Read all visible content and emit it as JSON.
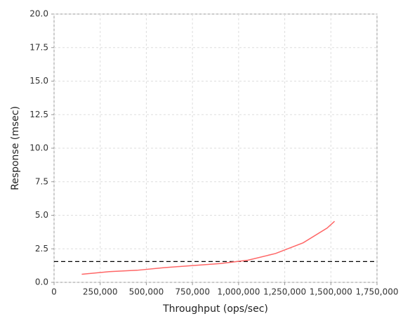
{
  "chart_data": {
    "type": "line",
    "x_label": "Throughput (ops/sec)",
    "y_label": "Response (msec)",
    "x": [
      150000,
      300000,
      450000,
      600000,
      750000,
      900000,
      1050000,
      1200000,
      1350000,
      1480000,
      1520000
    ],
    "values": [
      0.6,
      0.8,
      0.9,
      1.1,
      1.25,
      1.4,
      1.65,
      2.15,
      2.95,
      4.05,
      4.55
    ],
    "color": "#ff6666",
    "reference_line": 1.55,
    "reference_color": "#000000",
    "xlim": [
      0,
      1750000
    ],
    "xticks": [
      0,
      {
        "value": 250000,
        "label": "250,000"
      },
      {
        "value": 500000,
        "label": "500,000"
      },
      {
        "value": 750000,
        "label": "750,000"
      },
      {
        "value": 1000000,
        "label": "1,000,000"
      },
      {
        "value": 1250000,
        "label": "1,250,000"
      },
      {
        "value": 1500000,
        "label": "1,500,000"
      },
      {
        "value": 1750000,
        "label": "1,750,000"
      }
    ],
    "ylim": [
      0,
      20
    ],
    "yticks": [
      {
        "value": 0,
        "label": "0.0"
      },
      2.5,
      {
        "value": 5,
        "label": "5.0"
      },
      7.5,
      {
        "value": 10,
        "label": "10.0"
      },
      12.5,
      {
        "value": 15,
        "label": "15.0"
      },
      17.5,
      {
        "value": 20,
        "label": "20.0"
      }
    ],
    "grid": true
  }
}
